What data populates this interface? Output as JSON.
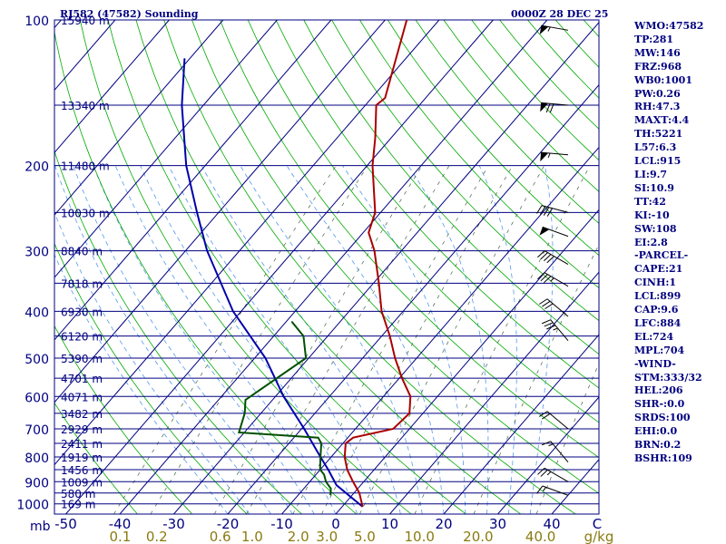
{
  "header": {
    "station_title": "RJ582 (47582) Sounding",
    "valid_time": "0000Z 28 DEC 25"
  },
  "indices": [
    "WMO:47582",
    "TP:281",
    "MW:146",
    "FRZ:968",
    "WB0:1001",
    "PW:0.26",
    "RH:47.3",
    "MAXT:4.4",
    "TH:5221",
    "L57:6.3",
    "LCL:915",
    "LI:9.7",
    "SI:10.9",
    "TT:42",
    "KI:-10",
    "SW:108",
    "EI:2.8",
    "-PARCEL-",
    "CAPE:21",
    "CINH:1",
    "LCL:899",
    "CAP:9.6",
    "LFC:884",
    "EL:724",
    "MPL:704",
    "-WIND-",
    "STM:333/32",
    "HEL:206",
    "SHR-:0.0",
    "SRDS:100",
    "EHI:0.0",
    "BRN:0.2",
    "BSHR:109"
  ],
  "colors": {
    "temperature": "#aa0000",
    "dewpoint": "#005000",
    "parcel": "#0000aa",
    "isobar": "#000080",
    "isotherm": "#000080",
    "dry_adiabat": "#00aa00",
    "moist_adiabat": "#5599ee",
    "mixing_ratio": "#446644",
    "text": "#000080",
    "mixing_text": "#8a7a10"
  },
  "chart_data": {
    "type": "line",
    "xlabel": "C",
    "pressure_axis_label": "mb",
    "mixing_ratio_unit": "g/kg",
    "pressure_levels": [
      {
        "p": 100,
        "label": "100"
      },
      {
        "p": 200,
        "label": "200"
      },
      {
        "p": 300,
        "label": "300"
      },
      {
        "p": 400,
        "label": "400"
      },
      {
        "p": 500,
        "label": "500"
      },
      {
        "p": 600,
        "label": "600"
      },
      {
        "p": 700,
        "label": "700"
      },
      {
        "p": 800,
        "label": "800"
      },
      {
        "p": 900,
        "label": "900"
      },
      {
        "p": 1000,
        "label": "1000"
      }
    ],
    "temperature_ticks": [
      {
        "t": -50,
        "label": "-50"
      },
      {
        "t": -40,
        "label": "-40"
      },
      {
        "t": -30,
        "label": "-30"
      },
      {
        "t": -20,
        "label": "-20"
      },
      {
        "t": -10,
        "label": "-10"
      },
      {
        "t": 0,
        "label": "0"
      },
      {
        "t": 10,
        "label": "10"
      },
      {
        "t": 20,
        "label": "20"
      },
      {
        "t": 30,
        "label": "30"
      },
      {
        "t": 40,
        "label": "40"
      }
    ],
    "mixing_ratio_ticks": [
      "0.1",
      "0.2",
      "0.6",
      "1.0",
      "2.0",
      "3.0",
      "5.0",
      "10.0",
      "20.0",
      "40.0"
    ],
    "height_labels": [
      {
        "p": 100,
        "label": "15940 m"
      },
      {
        "p": 150,
        "label": "13340 m"
      },
      {
        "p": 200,
        "label": "11480 m"
      },
      {
        "p": 250,
        "label": "10030 m"
      },
      {
        "p": 300,
        "label": "8840 m"
      },
      {
        "p": 350,
        "label": "7818 m"
      },
      {
        "p": 400,
        "label": "6930 m"
      },
      {
        "p": 450,
        "label": "6120 m"
      },
      {
        "p": 500,
        "label": "5390 m"
      },
      {
        "p": 550,
        "label": "4701 m"
      },
      {
        "p": 600,
        "label": "4071 m"
      },
      {
        "p": 650,
        "label": "3482 m"
      },
      {
        "p": 700,
        "label": "2929 m"
      },
      {
        "p": 750,
        "label": "2411 m"
      },
      {
        "p": 800,
        "label": "1919 m"
      },
      {
        "p": 850,
        "label": "1456 m"
      },
      {
        "p": 900,
        "label": "1009 m"
      },
      {
        "p": 950,
        "label": "580 m"
      },
      {
        "p": 1000,
        "label": "169 m"
      }
    ],
    "temperature_profile": [
      {
        "p": 1014,
        "t": 3.8
      },
      {
        "p": 950,
        "t": 1.0
      },
      {
        "p": 900,
        "t": -2.0
      },
      {
        "p": 850,
        "t": -5.0
      },
      {
        "p": 800,
        "t": -7.5
      },
      {
        "p": 750,
        "t": -9.5
      },
      {
        "p": 730,
        "t": -9.0
      },
      {
        "p": 700,
        "t": -3.0
      },
      {
        "p": 650,
        "t": -2.5
      },
      {
        "p": 600,
        "t": -5.0
      },
      {
        "p": 550,
        "t": -9.5
      },
      {
        "p": 500,
        "t": -14.0
      },
      {
        "p": 450,
        "t": -18.5
      },
      {
        "p": 400,
        "t": -24.0
      },
      {
        "p": 350,
        "t": -29.0
      },
      {
        "p": 300,
        "t": -35.0
      },
      {
        "p": 275,
        "t": -39.0
      },
      {
        "p": 250,
        "t": -41.0
      },
      {
        "p": 200,
        "t": -49.0
      },
      {
        "p": 175,
        "t": -53.0
      },
      {
        "p": 150,
        "t": -58.0
      },
      {
        "p": 145,
        "t": -57.5
      },
      {
        "p": 100,
        "t": -66.0
      }
    ],
    "dewpoint_profile": [
      {
        "p": 960,
        "t": -4.0
      },
      {
        "p": 930,
        "t": -5.0
      },
      {
        "p": 900,
        "t": -7.0
      },
      {
        "p": 870,
        "t": -8.5
      },
      {
        "p": 850,
        "t": -10.0
      },
      {
        "p": 800,
        "t": -12.0
      },
      {
        "p": 750,
        "t": -14.0
      },
      {
        "p": 730,
        "t": -15.5
      },
      {
        "p": 712,
        "t": -31.0
      },
      {
        "p": 650,
        "t": -33.0
      },
      {
        "p": 610,
        "t": -35.0
      },
      {
        "p": 500,
        "t": -30.5
      },
      {
        "p": 450,
        "t": -34.5
      },
      {
        "p": 420,
        "t": -39.0
      }
    ],
    "parcel_profile": [
      {
        "p": 1014,
        "t": 3.8
      },
      {
        "p": 915,
        "t": -4.5
      },
      {
        "p": 850,
        "t": -8.5
      },
      {
        "p": 800,
        "t": -12.0
      },
      {
        "p": 700,
        "t": -19.5
      },
      {
        "p": 600,
        "t": -28.5
      },
      {
        "p": 500,
        "t": -38.0
      },
      {
        "p": 400,
        "t": -51.5
      },
      {
        "p": 300,
        "t": -66.0
      },
      {
        "p": 250,
        "t": -74.0
      },
      {
        "p": 200,
        "t": -83.5
      },
      {
        "p": 150,
        "t": -94.0
      },
      {
        "p": 120,
        "t": -101.0
      }
    ],
    "wind_barbs": [
      {
        "p": 105,
        "dir": 280,
        "spd": 55
      },
      {
        "p": 150,
        "dir": 275,
        "spd": 70
      },
      {
        "p": 190,
        "dir": 275,
        "spd": 55
      },
      {
        "p": 250,
        "dir": 285,
        "spd": 40
      },
      {
        "p": 280,
        "dir": 290,
        "spd": 50
      },
      {
        "p": 320,
        "dir": 300,
        "spd": 40
      },
      {
        "p": 355,
        "dir": 300,
        "spd": 35
      },
      {
        "p": 410,
        "dir": 310,
        "spd": 30
      },
      {
        "p": 460,
        "dir": 320,
        "spd": 35
      },
      {
        "p": 700,
        "dir": 310,
        "spd": 20
      },
      {
        "p": 820,
        "dir": 320,
        "spd": 15
      },
      {
        "p": 900,
        "dir": 300,
        "spd": 25
      },
      {
        "p": 960,
        "dir": 290,
        "spd": 15
      }
    ]
  }
}
